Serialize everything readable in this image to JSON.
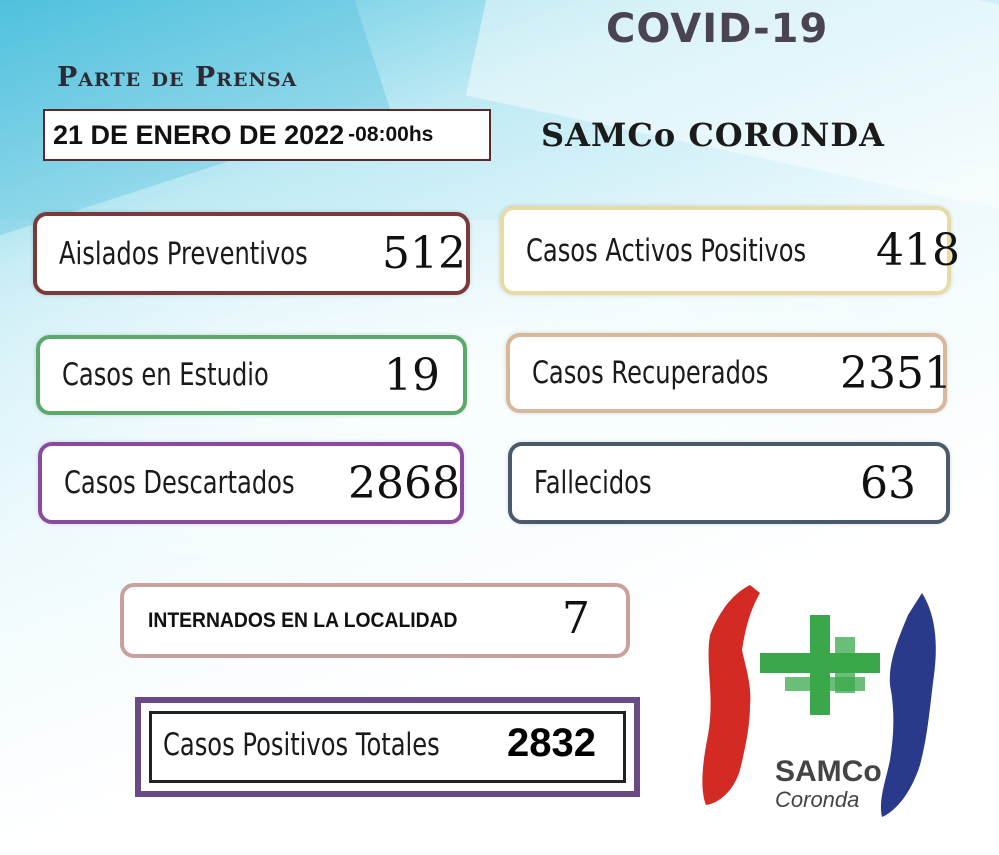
{
  "header": {
    "covid_title": "COVID-19",
    "parte": "Parte de Prensa",
    "date": "21 DE ENERO DE 2022",
    "time": "-08:00hs",
    "org": "SAMCo CORONDA"
  },
  "cards": {
    "aislados": {
      "label": "Aislados Preventivos",
      "value": "512"
    },
    "activos": {
      "label": "Casos Activos Positivos",
      "value": "418"
    },
    "estudio": {
      "label": "Casos en Estudio",
      "value": "19"
    },
    "recuperados": {
      "label": "Casos Recuperados",
      "value": "2351"
    },
    "descartados": {
      "label": "Casos Descartados",
      "value": "2868"
    },
    "fallecidos": {
      "label": "Fallecidos",
      "value": "63"
    }
  },
  "internados": {
    "label": "INTERNADOS EN LA LOCALIDAD",
    "value": "7"
  },
  "totales": {
    "label": "Casos Positivos Totales",
    "value": "2832"
  },
  "logo": {
    "name": "SAMCo",
    "city": "Coronda",
    "colors": {
      "red": "#d42a24",
      "green": "#3aa84a",
      "blue": "#2a3a8a"
    }
  }
}
